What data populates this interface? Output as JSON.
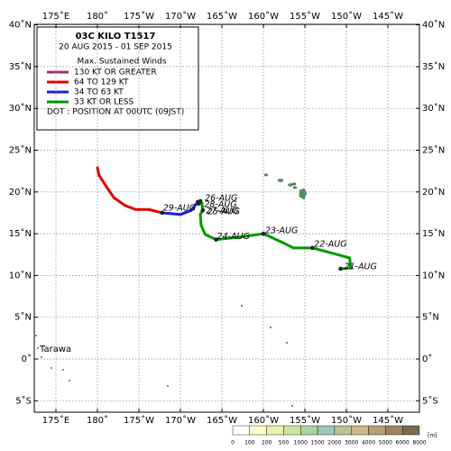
{
  "map": {
    "lon_ticks": [
      {
        "value": 175,
        "label": "175˚E"
      },
      {
        "value": 180,
        "label": "180˚"
      },
      {
        "value": 185,
        "label": "175˚W"
      },
      {
        "value": 190,
        "label": "170˚W"
      },
      {
        "value": 195,
        "label": "165˚W"
      },
      {
        "value": 200,
        "label": "160˚W"
      },
      {
        "value": 205,
        "label": "155˚W"
      },
      {
        "value": 210,
        "label": "150˚W"
      },
      {
        "value": 215,
        "label": "145˚W"
      }
    ],
    "lat_ticks": [
      {
        "value": 40,
        "label": "40˚N"
      },
      {
        "value": 35,
        "label": "35˚N"
      },
      {
        "value": 30,
        "label": "30˚N"
      },
      {
        "value": 25,
        "label": "25˚N"
      },
      {
        "value": 20,
        "label": "20˚N"
      },
      {
        "value": 15,
        "label": "15˚N"
      },
      {
        "value": 10,
        "label": "10˚N"
      },
      {
        "value": 5,
        "label": "5˚N"
      },
      {
        "value": 0,
        "label": "0˚"
      },
      {
        "value": -5,
        "label": "5˚S"
      }
    ],
    "place_label": "Tarawa"
  },
  "legend": {
    "title": "03C  KILO  T1517",
    "period": "20 AUG 2015 - 01 SEP 2015",
    "heading": "Max. Sustained Winds",
    "items": [
      {
        "label": "130 KT OR GREATER",
        "color": "#a0307a"
      },
      {
        "label": "64 TO 129 KT",
        "color": "#e00000"
      },
      {
        "label": "34 TO 63 KT",
        "color": "#1c1ce0"
      },
      {
        "label": "33 KT OR LESS",
        "color": "#009a00"
      }
    ],
    "note": "DOT : POSITION AT 00UTC (09JST)"
  },
  "track": {
    "points": [
      {
        "lon": 209.3,
        "lat": 10.8,
        "cat": 3,
        "label": "21-AUG"
      },
      {
        "lon": 210.5,
        "lat": 10.9,
        "cat": 3
      },
      {
        "lon": 210.4,
        "lat": 12.1,
        "cat": 3
      },
      {
        "lon": 209.3,
        "lat": 12.4,
        "cat": 3
      },
      {
        "lon": 205.9,
        "lat": 13.3,
        "cat": 3,
        "label": "22-AUG"
      },
      {
        "lon": 203.6,
        "lat": 13.3,
        "cat": 3
      },
      {
        "lon": 202.2,
        "lat": 14.0,
        "cat": 3
      },
      {
        "lon": 200.0,
        "lat": 15.0,
        "cat": 3,
        "label": "23-AUG"
      },
      {
        "lon": 197.2,
        "lat": 14.6,
        "cat": 3
      },
      {
        "lon": 194.3,
        "lat": 14.3,
        "cat": 3,
        "label": "24-AUG"
      },
      {
        "lon": 193.0,
        "lat": 14.9,
        "cat": 3
      },
      {
        "lon": 192.5,
        "lat": 16.0,
        "cat": 3
      },
      {
        "lon": 192.4,
        "lat": 17.3,
        "cat": 3
      },
      {
        "lon": 192.7,
        "lat": 17.8,
        "cat": 3,
        "label": "25-AUG"
      },
      {
        "lon": 192.6,
        "lat": 18.6,
        "cat": 3
      },
      {
        "lon": 192.4,
        "lat": 18.9,
        "cat": 2,
        "label": "26-AUG"
      },
      {
        "lon": 192.2,
        "lat": 18.6,
        "cat": 2,
        "label": "27-AUG"
      },
      {
        "lon": 192.1,
        "lat": 18.8,
        "cat": 2,
        "label": "28-AUG"
      },
      {
        "lon": 191.3,
        "lat": 17.8,
        "cat": 2
      },
      {
        "lon": 190.0,
        "lat": 17.3,
        "cat": 2
      },
      {
        "lon": 187.8,
        "lat": 17.5,
        "cat": 1,
        "label": "29-AUG"
      },
      {
        "lon": 186.2,
        "lat": 17.9,
        "cat": 1
      },
      {
        "lon": 184.6,
        "lat": 17.9,
        "cat": 1
      },
      {
        "lon": 183.3,
        "lat": 18.4,
        "cat": 1
      },
      {
        "lon": 182.0,
        "lat": 19.3,
        "cat": 1
      },
      {
        "lon": 181.1,
        "lat": 20.6,
        "cat": 1
      },
      {
        "lon": 180.2,
        "lat": 22.0,
        "cat": 1
      },
      {
        "lon": 180.0,
        "lat": 22.9,
        "cat": 1
      }
    ]
  },
  "elevation_scale": {
    "unit": "[m]",
    "ticks": [
      0,
      100,
      200,
      500,
      1000,
      1500,
      2000,
      3000,
      4000,
      5000,
      6000,
      8000
    ],
    "colors": [
      "#ffffff",
      "#fdfbc8",
      "#e9f0b0",
      "#cde3a0",
      "#a9d3a0",
      "#9fc7b5",
      "#b8c49a",
      "#c8b88a",
      "#b89e72",
      "#9e8460",
      "#7a6a50"
    ]
  }
}
